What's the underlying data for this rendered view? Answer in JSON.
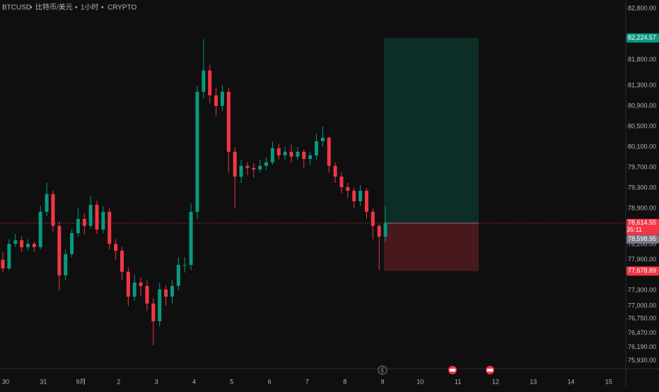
{
  "chart_data": {
    "type": "candlestick",
    "symbol": "BTCUSD",
    "name": "比特币/美元",
    "interval": "1小时",
    "exchange": "CRYPTO",
    "up_color": "#089981",
    "down_color": "#f23645",
    "ylim": [
      75775,
      82965
    ],
    "yticks": [
      {
        "value": 82800,
        "label": "82,800.00"
      },
      {
        "value": 82200,
        "label": "82,200.00"
      },
      {
        "value": 81800,
        "label": "81,800.00"
      },
      {
        "value": 81300,
        "label": "81,300.00"
      },
      {
        "value": 80900,
        "label": "80,900.00"
      },
      {
        "value": 80500,
        "label": "80,500.00"
      },
      {
        "value": 80100,
        "label": "80,100.00"
      },
      {
        "value": 79700,
        "label": "79,700.00"
      },
      {
        "value": 79300,
        "label": "79,300.00"
      },
      {
        "value": 78900,
        "label": "78,900.00"
      },
      {
        "value": 78200,
        "label": "78,200.00"
      },
      {
        "value": 77900,
        "label": "77,900.00"
      },
      {
        "value": 77300,
        "label": "77,300.00"
      },
      {
        "value": 77000,
        "label": "77,000.00"
      },
      {
        "value": 76750,
        "label": "76,750.00"
      },
      {
        "value": 76470,
        "label": "76,470.00"
      },
      {
        "value": 76190,
        "label": "76,190.00"
      },
      {
        "value": 75930,
        "label": "75,930.00"
      }
    ],
    "x_labels": [
      "30",
      "31",
      "9月",
      "2",
      "3",
      "4",
      "5",
      "6",
      "7",
      "8",
      "9",
      "10",
      "11",
      "12",
      "13",
      "14",
      "15"
    ],
    "candles": [
      [
        77900,
        78050,
        77650,
        77730
      ],
      [
        77730,
        78300,
        77700,
        78210
      ],
      [
        78210,
        78400,
        78150,
        78280
      ],
      [
        78280,
        78350,
        78050,
        78145
      ],
      [
        78145,
        78300,
        78080,
        78210
      ],
      [
        78210,
        78260,
        78050,
        78145
      ],
      [
        78145,
        78950,
        78100,
        78835
      ],
      [
        78835,
        79400,
        78750,
        79180
      ],
      [
        79180,
        79250,
        78450,
        78560
      ],
      [
        78560,
        78650,
        77300,
        77595
      ],
      [
        77595,
        78100,
        77500,
        78010
      ],
      [
        78010,
        78500,
        77950,
        78420
      ],
      [
        78420,
        78900,
        78350,
        78695
      ],
      [
        78695,
        78800,
        78400,
        78560
      ],
      [
        78560,
        79150,
        78500,
        78970
      ],
      [
        78970,
        79050,
        78400,
        78490
      ],
      [
        78490,
        78950,
        78420,
        78835
      ],
      [
        78835,
        78900,
        78100,
        78210
      ],
      [
        78210,
        78300,
        77900,
        78075
      ],
      [
        78075,
        78150,
        77500,
        77665
      ],
      [
        77665,
        77750,
        77000,
        77180
      ],
      [
        77180,
        77600,
        77100,
        77455
      ],
      [
        77455,
        77550,
        77200,
        77390
      ],
      [
        77390,
        77500,
        76900,
        77045
      ],
      [
        77045,
        77150,
        76230,
        76700
      ],
      [
        76700,
        77450,
        76600,
        77320
      ],
      [
        77320,
        77400,
        77000,
        77180
      ],
      [
        77180,
        77500,
        77050,
        77390
      ],
      [
        77390,
        77950,
        77300,
        77800
      ],
      [
        77800,
        77950,
        77650,
        77800
      ],
      [
        77800,
        79000,
        77700,
        78835
      ],
      [
        78835,
        81300,
        78700,
        81175
      ],
      [
        81175,
        82200,
        81050,
        81590
      ],
      [
        81590,
        81700,
        80950,
        81105
      ],
      [
        81105,
        81250,
        80700,
        80900
      ],
      [
        80900,
        81300,
        80800,
        81175
      ],
      [
        81175,
        81250,
        79600,
        80005
      ],
      [
        80005,
        80100,
        78900,
        79520
      ],
      [
        79520,
        79850,
        79400,
        79730
      ],
      [
        79730,
        79800,
        79550,
        79690
      ],
      [
        79690,
        79780,
        79500,
        79660
      ],
      [
        79660,
        79850,
        79600,
        79730
      ],
      [
        79730,
        79900,
        79650,
        79800
      ],
      [
        79800,
        80200,
        79750,
        80075
      ],
      [
        80075,
        80150,
        79850,
        79935
      ],
      [
        79935,
        80100,
        79850,
        80005
      ],
      [
        80005,
        80150,
        79800,
        79910
      ],
      [
        79910,
        80100,
        79850,
        80005
      ],
      [
        80005,
        80050,
        79700,
        79865
      ],
      [
        79865,
        80000,
        79750,
        79935
      ],
      [
        79935,
        80350,
        79850,
        80210
      ],
      [
        80210,
        80500,
        80100,
        80280
      ],
      [
        80280,
        80300,
        79600,
        79730
      ],
      [
        79730,
        79800,
        79400,
        79520
      ],
      [
        79520,
        79600,
        79200,
        79315
      ],
      [
        79315,
        79400,
        79100,
        79245
      ],
      [
        79245,
        79300,
        78900,
        79040
      ],
      [
        79040,
        79350,
        78950,
        79245
      ],
      [
        79245,
        79300,
        78700,
        78835
      ],
      [
        78835,
        78900,
        78300,
        78560
      ],
      [
        78560,
        78600,
        77700,
        78350
      ],
      [
        78350,
        78950,
        78250,
        78615
      ]
    ],
    "position": {
      "take_profit": {
        "value": 82224.57,
        "label": "82,224.57"
      },
      "entry": {
        "value": 78614.55,
        "label": "78,614.55"
      },
      "stop_loss": {
        "value": 77678.89,
        "label": "77,678.89"
      }
    },
    "countdown": "35:11",
    "secondary_price": {
      "value": 78598.95,
      "label": "78,598.95"
    }
  }
}
